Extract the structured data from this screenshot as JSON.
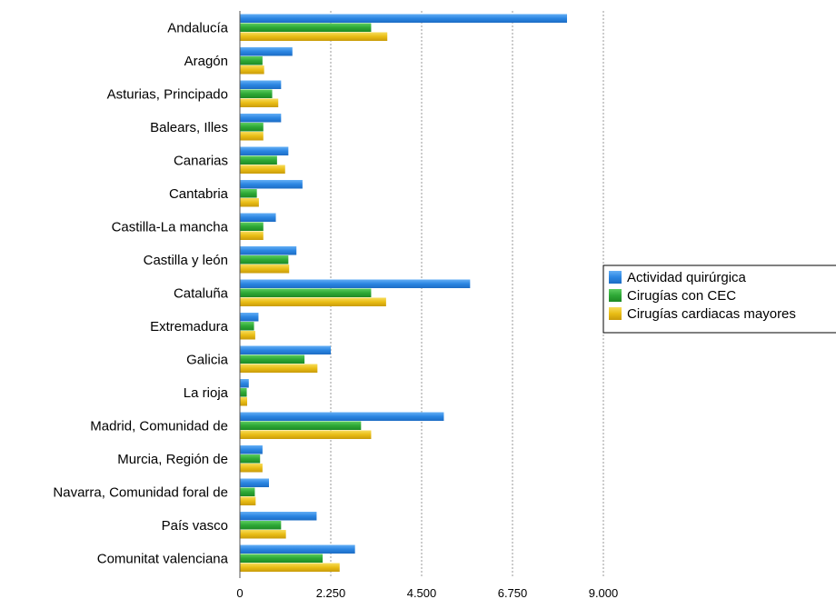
{
  "chart_data": {
    "type": "bar",
    "orientation": "horizontal",
    "categories": [
      "Andalucía",
      "Aragón",
      "Asturias, Principado",
      "Balears, Illes",
      "Canarias",
      "Cantabria",
      "Castilla-La mancha",
      "Castilla y león",
      "Cataluña",
      "Extremadura",
      "Galicia",
      "La rioja",
      "Madrid, Comunidad de",
      "Murcia, Región de",
      "Navarra, Comunidad foral de",
      "País vasco",
      "Comunitat valenciana"
    ],
    "series": [
      {
        "name": "Actividad quirúrgica",
        "color": "#2b86e2",
        "values": [
          8100,
          1300,
          1020,
          1020,
          1200,
          1550,
          890,
          1400,
          5700,
          460,
          2250,
          220,
          5050,
          560,
          720,
          1900,
          2850
        ]
      },
      {
        "name": "Cirugías con CEC",
        "color": "#2ea836",
        "values": [
          3250,
          560,
          800,
          580,
          920,
          420,
          580,
          1200,
          3250,
          350,
          1600,
          170,
          3000,
          500,
          370,
          1020,
          2050
        ]
      },
      {
        "name": "Cirugías cardiacas mayores",
        "color": "#e9bd15",
        "values": [
          3650,
          600,
          950,
          580,
          1120,
          470,
          580,
          1220,
          3620,
          380,
          1920,
          180,
          3250,
          560,
          390,
          1140,
          2470
        ]
      }
    ],
    "xticks": [
      "0",
      "2.250",
      "4.500",
      "6.750",
      "9.000"
    ],
    "xtick_values": [
      0,
      2250,
      4500,
      6750,
      9000
    ],
    "xlim": [
      0,
      9000
    ],
    "grid": "vertical dashed",
    "legend": "right",
    "title": "",
    "xlabel": "",
    "ylabel": ""
  }
}
